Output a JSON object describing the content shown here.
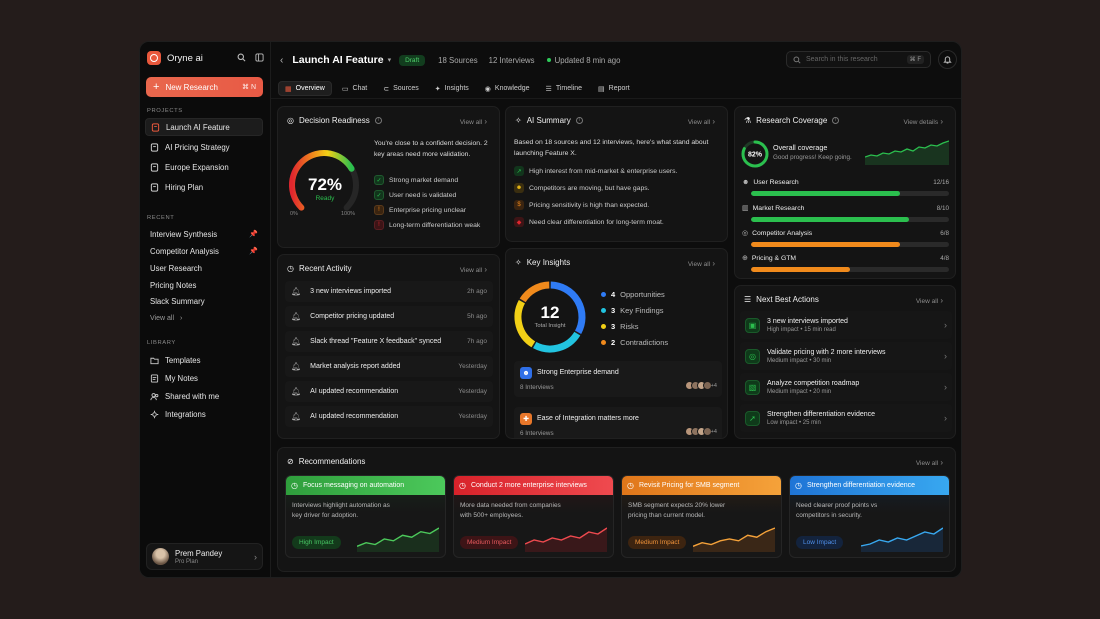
{
  "sidebar": {
    "brand": "Oryne ai",
    "new_research": "New Research",
    "new_research_kbd": "⌘ N",
    "projects_label": "PROJECTS",
    "projects": [
      "Launch AI Feature",
      "AI Pricing Strategy",
      "Europe Expansion",
      "Hiring Plan"
    ],
    "recent_label": "RECENT",
    "recent": [
      "Interview Synthesis",
      "Competitor Analysis",
      "User Research",
      "Pricing Notes",
      "Slack Summary"
    ],
    "view_all": "View all",
    "library_label": "LIBRARY",
    "library": [
      "Templates",
      "My Notes",
      "Shared with me",
      "Integrations"
    ],
    "user_name": "Prem Pandey",
    "user_plan": "Pro Plan"
  },
  "header": {
    "title": "Launch AI Feature",
    "status": "Draft",
    "sources": "18 Sources",
    "interviews": "12 Interviews",
    "updated": "Updated 8 min ago",
    "search_placeholder": "Search in this research",
    "search_kbd": "⌘ F"
  },
  "tabs": [
    "Overview",
    "Chat",
    "Sources",
    "Insights",
    "Knowledge",
    "Timeline",
    "Report"
  ],
  "decision": {
    "title": "Decision Readiness",
    "view_all": "View all",
    "percent": "72%",
    "percent_value": 72,
    "status": "Ready",
    "min": "0%",
    "max": "100%",
    "summary": "You're close to a confident decision. 2 key areas need more validation.",
    "items": [
      "Strong market demand",
      "User need is validated",
      "Enterprise pricing unclear",
      "Long-term differentiation weak"
    ]
  },
  "ai_summary": {
    "title": "AI Summary",
    "view_all": "View all",
    "intro": "Based on 18 sources and 12 interviews, here's what stand about launching Feature X.",
    "items": [
      "High interest from mid-market & enterprise users.",
      "Competitors are moving, but have gaps.",
      "Pricing sensitivity is high than expected.",
      "Need clear differentiation for long-term moat."
    ]
  },
  "coverage": {
    "title": "Research Coverage",
    "view_details": "View details",
    "percent": "82%",
    "percent_value": 82,
    "overall": "Overall coverage",
    "sub": "Good progress! Keep going.",
    "rows": [
      {
        "label": "User Research",
        "value": "12/16",
        "fraction": 0.75,
        "color": "#2bbf4e"
      },
      {
        "label": "Market Research",
        "value": "8/10",
        "fraction": 0.8,
        "color": "#2bbf4e"
      },
      {
        "label": "Competitor Analysis",
        "value": "6/8",
        "fraction": 0.75,
        "color": "#f08a1c"
      },
      {
        "label": "Pricing & GTM",
        "value": "4/8",
        "fraction": 0.5,
        "color": "#f08a1c"
      }
    ]
  },
  "activity": {
    "title": "Recent Activity",
    "view_all": "View all",
    "rows": [
      {
        "text": "3 new interviews imported",
        "time": "2h ago"
      },
      {
        "text": "Competitor pricing updated",
        "time": "5h ago"
      },
      {
        "text": "Slack thread \"Feature X feedback\" synced",
        "time": "7h ago"
      },
      {
        "text": "Market analysis report added",
        "time": "Yesterday"
      },
      {
        "text": "AI updated recommendation",
        "time": "Yesterday"
      },
      {
        "text": "AI updated recommendation",
        "time": "Yesterday"
      }
    ]
  },
  "insights": {
    "title": "Key Insights",
    "view_all": "View all",
    "total": "12",
    "total_label": "Total Insight",
    "legend": [
      {
        "count": "4",
        "label": "Opportunities",
        "color": "#2f7bf5",
        "value": 4
      },
      {
        "count": "3",
        "label": "Key Findings",
        "color": "#22c4e0",
        "value": 3
      },
      {
        "count": "3",
        "label": "Risks",
        "color": "#f2d016",
        "value": 3
      },
      {
        "count": "2",
        "label": "Contradictions",
        "color": "#f08a1c",
        "value": 2
      }
    ],
    "rows": [
      {
        "title": "Strong Enterprise demand",
        "sub": "8 Interviews",
        "more": "+4",
        "color": "#2f6fe8"
      },
      {
        "title": "Ease of Integration matters more",
        "sub": "6 Interviews",
        "more": "+4",
        "color": "#e8772a"
      }
    ]
  },
  "next_actions": {
    "title": "Next Best Actions",
    "view_all": "View all",
    "rows": [
      {
        "title": "3 new interviews imported",
        "sub": "High impact • 15 min read"
      },
      {
        "title": "Validate pricing with 2 more interviews",
        "sub": "Medium impact • 30 min"
      },
      {
        "title": "Analyze competition roadmap",
        "sub": "Medium impact • 20 min"
      },
      {
        "title": "Strengthen differentiation evidence",
        "sub": "Low impact • 25 min"
      }
    ]
  },
  "recommendations": {
    "title": "Recommendations",
    "view_all": "View all",
    "cards": [
      {
        "title": "Focus messaging on automation",
        "body": "Interviews highlight automation as key driver for adoption.",
        "impact": "High Impact",
        "color": "#2f9e3c",
        "light": "#4cc95b",
        "pill_bg": "#133a1b",
        "pill_fg": "#48c865",
        "trend": [
          2,
          4,
          3,
          6,
          5,
          8,
          7,
          10,
          9,
          12
        ]
      },
      {
        "title": "Conduct 2 more enterprise interviews",
        "body": "More data needed from companies with 500+ employees.",
        "impact": "Medium Impact",
        "color": "#d8222a",
        "light": "#ef4a4f",
        "pill_bg": "#3d1416",
        "pill_fg": "#e85a5e",
        "trend": [
          3,
          5,
          4,
          6,
          5,
          7,
          6,
          9,
          8,
          11
        ]
      },
      {
        "title": "Revisit Pricing for SMB segment",
        "body": "SMB segment expects 20% lower pricing than current model.",
        "impact": "Medium Impact",
        "color": "#e0761a",
        "light": "#f5a23a",
        "pill_bg": "#3d2410",
        "pill_fg": "#f0933a",
        "trend": [
          2,
          4,
          3,
          5,
          6,
          5,
          8,
          7,
          10,
          12
        ]
      },
      {
        "title": "Strengthen differentiation evidence",
        "body": "Need clearer proof points vs competitors in security.",
        "impact": "Low Impact",
        "color": "#1f74d6",
        "light": "#38a8f0",
        "pill_bg": "#13233d",
        "pill_fg": "#4f8fe8",
        "trend": [
          2,
          3,
          5,
          4,
          6,
          5,
          7,
          9,
          8,
          11
        ]
      }
    ]
  }
}
